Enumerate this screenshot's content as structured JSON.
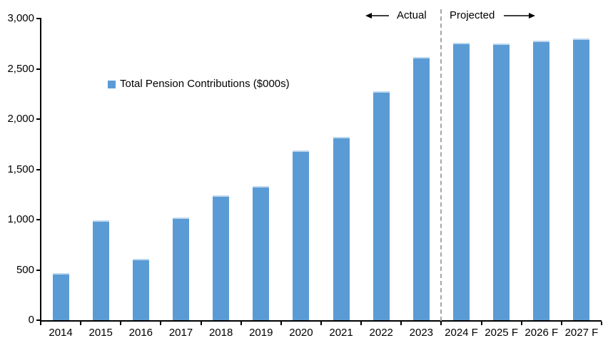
{
  "chart_data": {
    "type": "bar",
    "title": "",
    "series_name": "Total Pension Contributions ($000s)",
    "categories": [
      "2014",
      "2015",
      "2016",
      "2017",
      "2018",
      "2019",
      "2020",
      "2021",
      "2022",
      "2023",
      "2024 F",
      "2025 F",
      "2026 F",
      "2027 F"
    ],
    "values": [
      470,
      990,
      610,
      1020,
      1240,
      1330,
      1690,
      1820,
      2280,
      2620,
      2760,
      2750,
      2780,
      2800
    ],
    "xlabel": "",
    "ylabel": "",
    "ylim": [
      0,
      3000
    ],
    "ytick_step": 500,
    "ytick_labels": [
      "0",
      "500",
      "1,000",
      "1,500",
      "2,000",
      "2,500",
      "3,000"
    ],
    "grid": false,
    "legend_position": "inside-upper-left",
    "divider_after_index": 10,
    "annotations": {
      "actual": "Actual",
      "projected": "Projected"
    }
  },
  "colors": {
    "bar": "#5B9BD5",
    "bar_cap": "#BDD7EE",
    "divider": "#A6A6A6",
    "axis": "#000000",
    "text": "#000000"
  }
}
